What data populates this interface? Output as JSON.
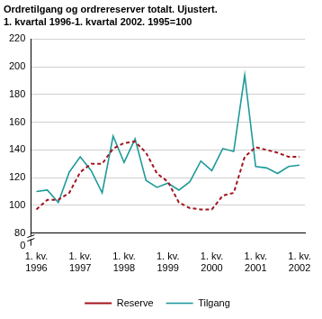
{
  "chart_data": {
    "type": "line",
    "title": "Ordretilgang og ordrereserver totalt. Ujustert.",
    "subtitle": "1. kvartal 1996-1. kvartal 2002. 1995=100",
    "categories": [
      "1. kv. 1996",
      null,
      null,
      null,
      "1. kv. 1997",
      null,
      null,
      null,
      "1. kv. 1998",
      null,
      null,
      null,
      "1. kv. 1999",
      null,
      null,
      null,
      "1. kv. 2000",
      null,
      null,
      null,
      "1. kv. 2001",
      null,
      null,
      null,
      "1. kv. 2002"
    ],
    "series": [
      {
        "name": "Reserve",
        "color": "#a3141e",
        "line_style": "dashed",
        "marker": "none",
        "values": [
          97,
          104,
          104,
          109,
          124,
          130,
          130,
          141,
          145,
          146,
          138,
          123,
          117,
          102,
          98,
          97,
          97,
          107,
          109,
          135,
          142,
          140,
          138,
          135,
          135
        ]
      },
      {
        "name": "Tilgang",
        "color": "#1f9a9a",
        "line_style": "solid",
        "marker": "none",
        "values": [
          110,
          111,
          102,
          124,
          135,
          125,
          109,
          150,
          131,
          148,
          118,
          113,
          116,
          111,
          117,
          132,
          125,
          141,
          139,
          194,
          128,
          127,
          123,
          128,
          129
        ]
      }
    ],
    "ylim": [
      80,
      220
    ],
    "yticks": [
      80,
      100,
      120,
      140,
      160,
      180,
      200,
      220
    ],
    "annotations": [
      "0"
    ],
    "grid": true,
    "legend": "bottom"
  }
}
